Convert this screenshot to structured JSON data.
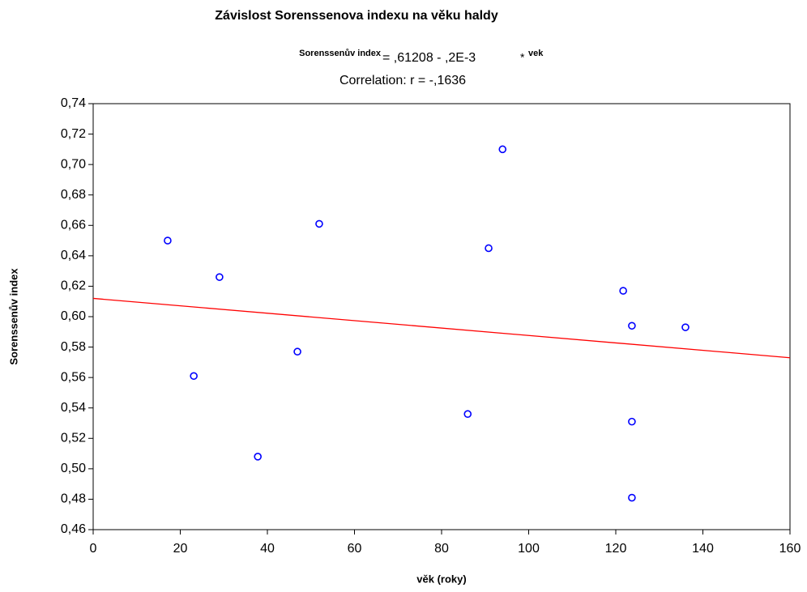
{
  "chart_data": {
    "type": "scatter",
    "title": "Závislost Sorenssenova indexu na věku haldy",
    "equation": {
      "lhs": "Sorenssenův index",
      "rhs": "= ,61208 - ,2E-3",
      "op": "*",
      "var": "vek"
    },
    "correlation": "Correlation: r = -,1636",
    "x_label": "věk (roky)",
    "y_label": "Sorenssenův index",
    "x": [
      17.1,
      23.1,
      29.0,
      37.8,
      46.9,
      51.9,
      86.0,
      90.8,
      94.0,
      121.7,
      123.7,
      123.7,
      123.7,
      136.0
    ],
    "series": [
      {
        "color": "#0000ff",
        "values": [
          0.65,
          0.561,
          0.626,
          0.508,
          0.577,
          0.661,
          0.536,
          0.645,
          0.71,
          0.617,
          0.594,
          0.531,
          0.481,
          0.593
        ]
      }
    ],
    "fit_line": {
      "color": "#ff0000",
      "x": [
        0,
        160
      ],
      "y": [
        0.612,
        0.573
      ]
    },
    "xlim": [
      0,
      160
    ],
    "xticks": [
      0,
      20,
      40,
      60,
      80,
      100,
      120,
      140,
      160
    ],
    "ylim": [
      0.46,
      0.74
    ],
    "yticks": [
      {
        "value": 0.46,
        "label": "0,46"
      },
      {
        "value": 0.48,
        "label": "0,48"
      },
      {
        "value": 0.5,
        "label": "0,50"
      },
      {
        "value": 0.52,
        "label": "0,52"
      },
      {
        "value": 0.54,
        "label": "0,54"
      },
      {
        "value": 0.56,
        "label": "0,56"
      },
      {
        "value": 0.58,
        "label": "0,58"
      },
      {
        "value": 0.6,
        "label": "0,60"
      },
      {
        "value": 0.62,
        "label": "0,62"
      },
      {
        "value": 0.64,
        "label": "0,64"
      },
      {
        "value": 0.66,
        "label": "0,66"
      },
      {
        "value": 0.68,
        "label": "0,68"
      },
      {
        "value": 0.7,
        "label": "0,70"
      },
      {
        "value": 0.72,
        "label": "0,72"
      },
      {
        "value": 0.74,
        "label": "0,74"
      }
    ]
  }
}
